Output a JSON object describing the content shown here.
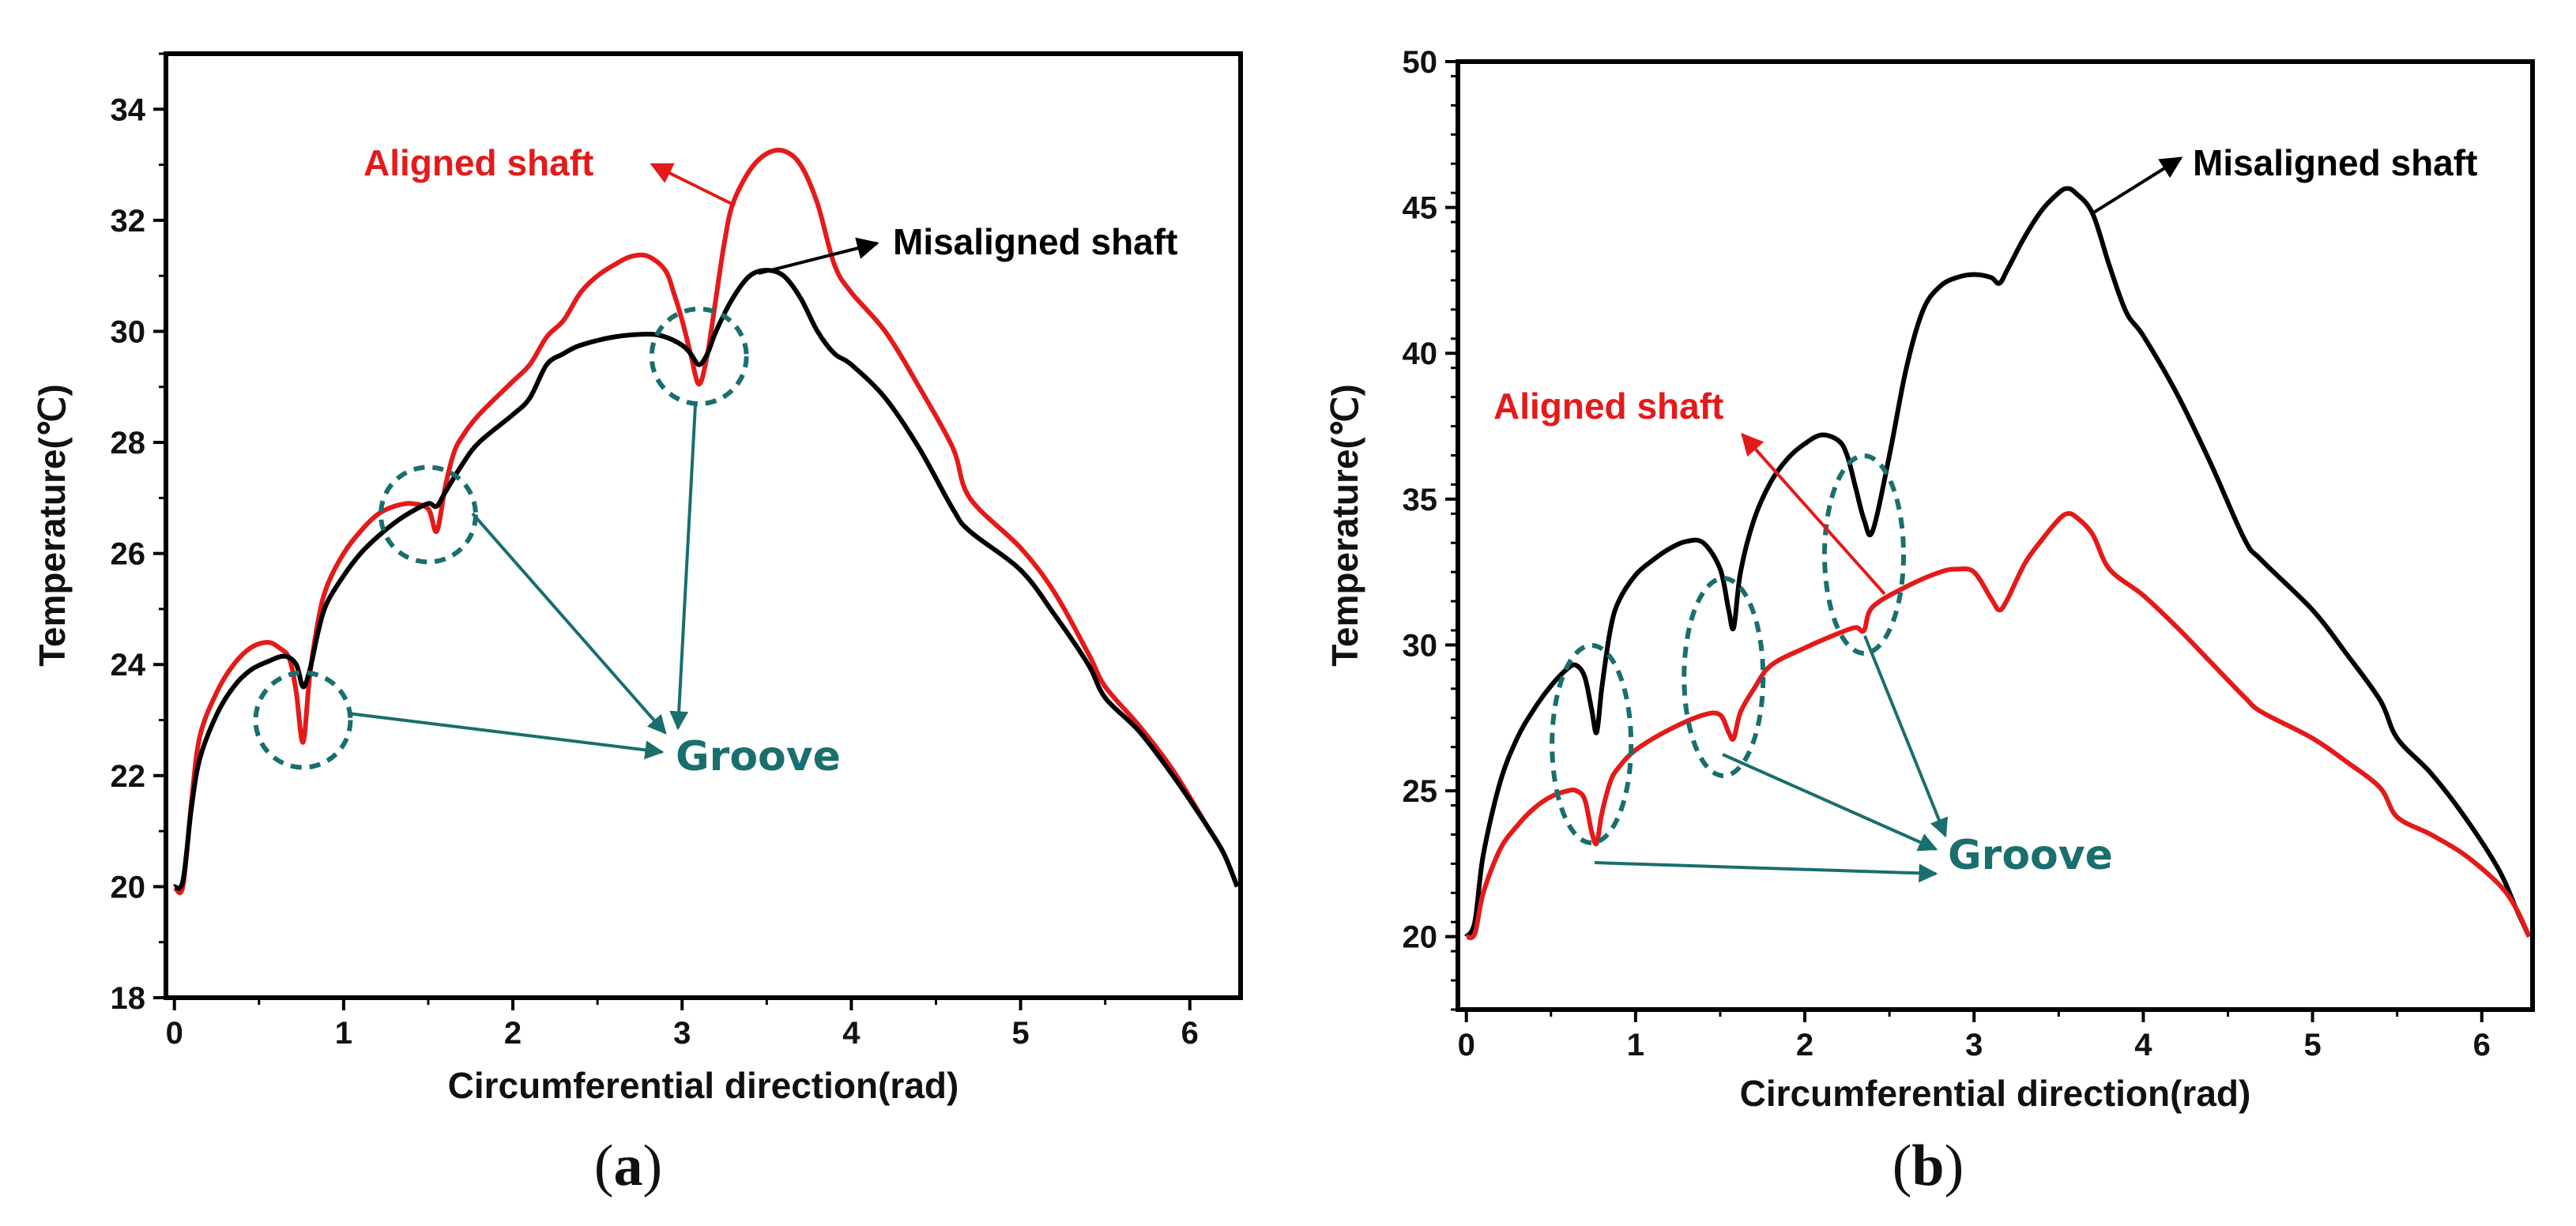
{
  "colors": {
    "aligned": "#e41a1a",
    "misaligned": "#000000",
    "groove": "#1a6e6e"
  },
  "chart_data": [
    {
      "type": "line",
      "panel_label": {
        "open": "(",
        "letter": "a",
        "close": ")"
      },
      "xlabel": "Circumferential direction(rad)",
      "ylabel": "Temperature(℃)",
      "xlim": [
        -0.05,
        6.3
      ],
      "ylim": [
        18,
        35
      ],
      "xticks": [
        0,
        1,
        2,
        3,
        4,
        5,
        6
      ],
      "yticks": [
        18,
        20,
        22,
        24,
        26,
        28,
        30,
        32,
        34
      ],
      "series": [
        {
          "name": "Aligned shaft",
          "color": "#e41a1a",
          "x": [
            0,
            0.05,
            0.1,
            0.15,
            0.25,
            0.35,
            0.45,
            0.55,
            0.62,
            0.68,
            0.72,
            0.76,
            0.8,
            0.85,
            0.9,
            1.0,
            1.1,
            1.2,
            1.3,
            1.4,
            1.5,
            1.55,
            1.6,
            1.65,
            1.7,
            1.8,
            2.0,
            2.1,
            2.2,
            2.3,
            2.4,
            2.5,
            2.6,
            2.7,
            2.8,
            2.9,
            2.95,
            3.0,
            3.05,
            3.1,
            3.15,
            3.2,
            3.25,
            3.3,
            3.4,
            3.5,
            3.6,
            3.7,
            3.8,
            3.9,
            4.0,
            4.2,
            4.4,
            4.6,
            4.7,
            5.0,
            5.2,
            5.4,
            5.5,
            5.7,
            5.9,
            6.1,
            6.2,
            6.28
          ],
          "y": [
            20,
            20,
            21.5,
            22.7,
            23.5,
            24,
            24.3,
            24.4,
            24.3,
            24.1,
            23.5,
            22.6,
            23.8,
            24.8,
            25.4,
            26.0,
            26.4,
            26.7,
            26.85,
            26.9,
            26.8,
            26.4,
            27.2,
            27.8,
            28.1,
            28.5,
            29.1,
            29.4,
            29.9,
            30.2,
            30.7,
            31.0,
            31.2,
            31.35,
            31.35,
            31.1,
            30.7,
            30.2,
            29.6,
            29.05,
            29.6,
            30.6,
            31.6,
            32.3,
            32.9,
            33.2,
            33.25,
            33.0,
            32.3,
            31.2,
            30.7,
            30.0,
            29.0,
            27.9,
            27.0,
            26.1,
            25.3,
            24.2,
            23.6,
            22.9,
            22.1,
            21.1,
            20.6,
            20.0
          ]
        },
        {
          "name": "Misaligned shaft",
          "color": "#000000",
          "x": [
            0,
            0.05,
            0.1,
            0.15,
            0.25,
            0.35,
            0.45,
            0.55,
            0.65,
            0.72,
            0.76,
            0.8,
            0.85,
            0.9,
            1.0,
            1.1,
            1.2,
            1.3,
            1.4,
            1.5,
            1.55,
            1.6,
            1.7,
            1.8,
            2.0,
            2.1,
            2.2,
            2.3,
            2.4,
            2.6,
            2.8,
            2.9,
            3.0,
            3.05,
            3.1,
            3.15,
            3.2,
            3.3,
            3.4,
            3.5,
            3.6,
            3.7,
            3.8,
            3.9,
            4.0,
            4.2,
            4.4,
            4.6,
            4.7,
            5.0,
            5.2,
            5.4,
            5.5,
            5.7,
            5.9,
            6.1,
            6.2,
            6.28
          ],
          "y": [
            20,
            20.1,
            21.4,
            22.3,
            23.1,
            23.6,
            23.9,
            24.05,
            24.15,
            24.0,
            23.6,
            23.9,
            24.6,
            25.1,
            25.6,
            26.0,
            26.3,
            26.55,
            26.75,
            26.9,
            26.85,
            27.1,
            27.6,
            28.0,
            28.5,
            28.8,
            29.4,
            29.6,
            29.75,
            29.9,
            29.95,
            29.9,
            29.75,
            29.6,
            29.4,
            29.6,
            30.0,
            30.6,
            31.0,
            31.1,
            31.0,
            30.6,
            30.0,
            29.6,
            29.4,
            28.8,
            27.9,
            26.8,
            26.4,
            25.7,
            24.9,
            24.0,
            23.4,
            22.8,
            22.0,
            21.1,
            20.6,
            20.0
          ]
        }
      ],
      "annotations": [
        {
          "text": "Aligned shaft",
          "color": "#e41a1a"
        },
        {
          "text": "Misaligned shaft",
          "color": "#000000"
        },
        {
          "text": "Groove",
          "color": "#1a6e6e"
        }
      ],
      "groove_centers": [
        [
          0.76,
          23.0
        ],
        [
          1.5,
          26.7
        ],
        [
          3.1,
          29.55
        ]
      ]
    },
    {
      "type": "line",
      "panel_label": {
        "open": "(",
        "letter": "b",
        "close": ")"
      },
      "xlabel": "Circumferential direction(rad)",
      "ylabel": "Temperature(℃)",
      "xlim": [
        -0.05,
        6.3
      ],
      "ylim": [
        17.5,
        50
      ],
      "xticks": [
        0,
        1,
        2,
        3,
        4,
        5,
        6
      ],
      "yticks": [
        20,
        25,
        30,
        35,
        40,
        45,
        50
      ],
      "series": [
        {
          "name": "Misaligned shaft",
          "color": "#000000",
          "x": [
            0,
            0.05,
            0.1,
            0.2,
            0.3,
            0.4,
            0.5,
            0.6,
            0.65,
            0.7,
            0.74,
            0.77,
            0.8,
            0.85,
            0.9,
            1.0,
            1.1,
            1.2,
            1.3,
            1.4,
            1.5,
            1.55,
            1.58,
            1.62,
            1.7,
            1.8,
            1.9,
            2.0,
            2.1,
            2.2,
            2.25,
            2.3,
            2.35,
            2.4,
            2.5,
            2.6,
            2.7,
            2.8,
            2.9,
            3.0,
            3.1,
            3.15,
            3.2,
            3.3,
            3.4,
            3.5,
            3.55,
            3.6,
            3.7,
            3.8,
            3.9,
            4.0,
            4.2,
            4.4,
            4.6,
            4.7,
            5.0,
            5.2,
            5.4,
            5.5,
            5.7,
            5.9,
            6.1,
            6.2,
            6.28
          ],
          "y": [
            20,
            20.5,
            22.8,
            25.3,
            26.8,
            27.8,
            28.6,
            29.2,
            29.3,
            28.9,
            27.8,
            27.0,
            28.5,
            30.5,
            31.5,
            32.4,
            32.9,
            33.3,
            33.55,
            33.5,
            32.6,
            31.2,
            30.6,
            32.5,
            34.3,
            35.6,
            36.4,
            36.9,
            37.2,
            37.0,
            36.5,
            35.4,
            34.3,
            33.9,
            36.5,
            39.5,
            41.5,
            42.3,
            42.6,
            42.7,
            42.6,
            42.4,
            42.9,
            44.0,
            44.9,
            45.5,
            45.65,
            45.5,
            44.8,
            43.0,
            41.4,
            40.6,
            38.6,
            36.2,
            33.6,
            32.9,
            31.2,
            29.7,
            28.1,
            26.8,
            25.6,
            24.1,
            22.3,
            21.0,
            20.0
          ]
        },
        {
          "name": "Aligned shaft",
          "color": "#e41a1a",
          "x": [
            0,
            0.05,
            0.1,
            0.2,
            0.3,
            0.4,
            0.5,
            0.6,
            0.65,
            0.7,
            0.74,
            0.77,
            0.8,
            0.85,
            0.9,
            1.0,
            1.2,
            1.4,
            1.5,
            1.55,
            1.58,
            1.62,
            1.7,
            1.8,
            2.0,
            2.2,
            2.3,
            2.35,
            2.4,
            2.6,
            2.8,
            2.9,
            3.0,
            3.1,
            3.15,
            3.2,
            3.3,
            3.4,
            3.5,
            3.55,
            3.6,
            3.7,
            3.8,
            4.0,
            4.2,
            4.4,
            4.6,
            4.7,
            5.0,
            5.2,
            5.4,
            5.5,
            5.7,
            5.9,
            6.1,
            6.2,
            6.28
          ],
          "y": [
            20,
            20.1,
            21.5,
            23.0,
            23.8,
            24.4,
            24.8,
            25.0,
            25.0,
            24.7,
            23.6,
            23.2,
            24.2,
            25.3,
            25.8,
            26.4,
            27.1,
            27.6,
            27.6,
            27.0,
            26.8,
            27.7,
            28.5,
            29.3,
            29.9,
            30.4,
            30.6,
            30.5,
            31.3,
            32.0,
            32.5,
            32.6,
            32.5,
            31.6,
            31.2,
            31.6,
            32.8,
            33.6,
            34.3,
            34.5,
            34.4,
            33.8,
            32.6,
            31.7,
            30.6,
            29.4,
            28.2,
            27.7,
            26.8,
            26.0,
            25.1,
            24.1,
            23.5,
            22.8,
            21.8,
            21.0,
            20.0
          ]
        }
      ],
      "annotations": [
        {
          "text": "Misaligned shaft",
          "color": "#000000"
        },
        {
          "text": "Aligned shaft",
          "color": "#e41a1a"
        },
        {
          "text": "Groove",
          "color": "#1a6e6e"
        }
      ],
      "groove_centers": [
        [
          0.74,
          26.6
        ],
        [
          1.52,
          28.9
        ],
        [
          2.35,
          33.1
        ]
      ]
    }
  ]
}
